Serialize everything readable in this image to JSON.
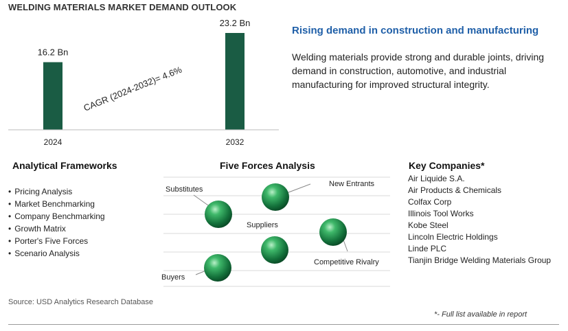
{
  "page_title": "WELDING MATERIALS MARKET DEMAND OUTLOOK",
  "chart_data": {
    "type": "bar",
    "categories": [
      "2024",
      "2032"
    ],
    "values": [
      16.2,
      23.2
    ],
    "value_labels": [
      "16.2 Bn",
      "23.2 Bn"
    ],
    "annotation": "CAGR (2024-2032)=    4.6%",
    "bar_color": "#1a5c44",
    "ylim": [
      0,
      23.2
    ]
  },
  "headline": "Rising demand in construction and manufacturing",
  "description": "Welding materials provide strong and durable joints, driving demand in construction, automotive, and industrial manufacturing for improved structural integrity.",
  "frameworks": {
    "title": "Analytical Frameworks",
    "items": [
      "Pricing Analysis",
      "Market Benchmarking",
      "Company Benchmarking",
      "Growth Matrix",
      "Porter's Five Forces",
      "Scenario Analysis"
    ]
  },
  "five_forces": {
    "title": "Five Forces Analysis",
    "labels": {
      "substitutes": "Substitutes",
      "new_entrants": "New Entrants",
      "suppliers": "Suppliers",
      "rivalry": "Competitive Rivalry",
      "buyers": "Buyers"
    }
  },
  "companies": {
    "title": "Key Companies*",
    "items": [
      "Air Liquide S.A.",
      "Air Products & Chemicals",
      "Colfax Corp",
      "Illinois Tool Works",
      "Kobe Steel",
      "Lincoln Electric Holdings",
      "Linde PLC",
      "Tianjin Bridge Welding Materials Group"
    ]
  },
  "source": "Source: USD Analytics Research Database",
  "footnote": "*- Full list available in report",
  "colors": {
    "accent": "#1f5fa8",
    "sphere": "#1e8a4a"
  }
}
